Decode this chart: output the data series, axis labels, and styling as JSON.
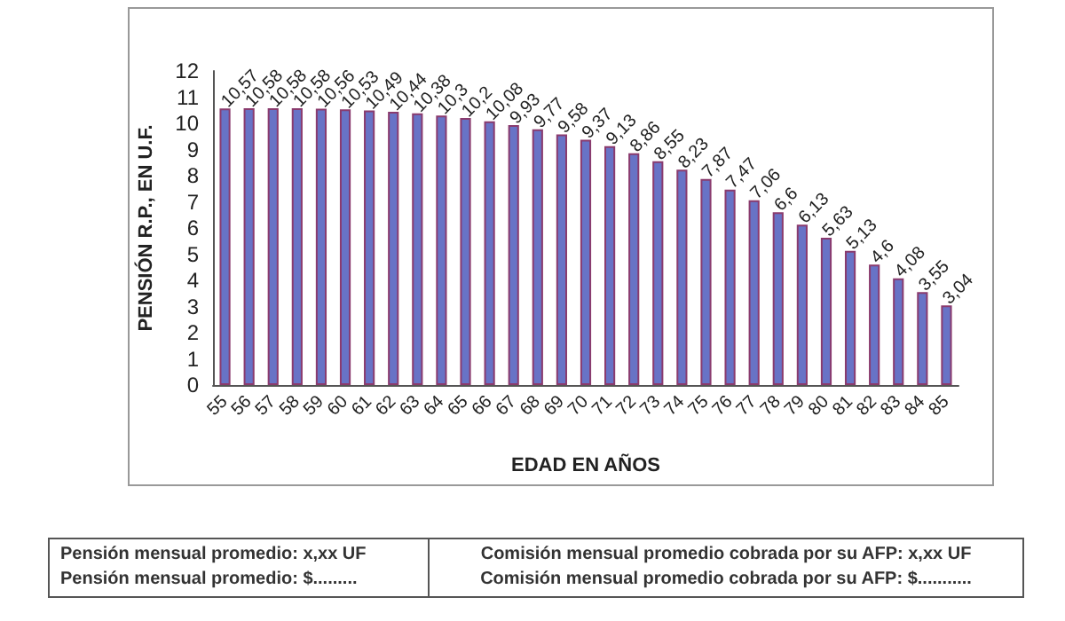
{
  "chart_data": {
    "type": "bar",
    "xlabel": "EDAD EN AÑOS",
    "ylabel": "PENSIÓN R.P., EN U.F.",
    "categories": [
      "55",
      "56",
      "57",
      "58",
      "59",
      "60",
      "61",
      "62",
      "63",
      "64",
      "65",
      "66",
      "67",
      "68",
      "69",
      "70",
      "71",
      "72",
      "73",
      "74",
      "75",
      "76",
      "77",
      "78",
      "79",
      "80",
      "81",
      "82",
      "83",
      "84",
      "85"
    ],
    "values": [
      10.57,
      10.58,
      10.58,
      10.58,
      10.56,
      10.53,
      10.49,
      10.44,
      10.38,
      10.3,
      10.2,
      10.08,
      9.93,
      9.77,
      9.58,
      9.37,
      9.13,
      8.86,
      8.55,
      8.23,
      7.87,
      7.47,
      7.06,
      6.6,
      6.13,
      5.63,
      5.13,
      4.6,
      4.08,
      3.55,
      3.04
    ],
    "value_labels": [
      "10,57",
      "10,58",
      "10,58",
      "10,58",
      "10,56",
      "10,53",
      "10,49",
      "10,44",
      "10,38",
      "10,3",
      "10,2",
      "10,08",
      "9,93",
      "9,77",
      "9,58",
      "9,37",
      "9,13",
      "8,86",
      "8,55",
      "8,23",
      "7,87",
      "7,47",
      "7,06",
      "6,6",
      "6,13",
      "5,63",
      "5,13",
      "4,6",
      "4,08",
      "3,55",
      "3,04"
    ],
    "color": "#6873c6",
    "ylim": [
      0,
      12
    ],
    "yticks": [
      0,
      1,
      2,
      3,
      4,
      5,
      6,
      7,
      8,
      9,
      10,
      11,
      12
    ],
    "grid": false,
    "annotations": [
      "Pensión mensual promedio: x,xx UF",
      "Pensión mensual promedio: $.........",
      "Comisión mensual promedio cobrada por su AFP: x,xx UF",
      "Comisión mensual promedio cobrada por su AFP: $..........."
    ]
  }
}
